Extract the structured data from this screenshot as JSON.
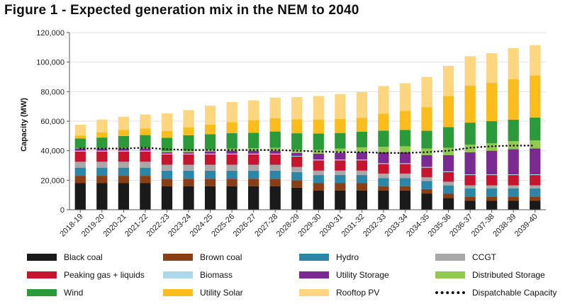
{
  "title": "Figure 1 - Expected generation mix in the NEM to 2040",
  "chart_data": {
    "type": "bar",
    "stacked": true,
    "title": "Figure 1 - Expected generation mix in the NEM to 2040",
    "xlabel": "",
    "ylabel": "Capacity (MW)",
    "ylim": [
      0,
      120000
    ],
    "yticks": [
      0,
      20000,
      40000,
      60000,
      80000,
      100000,
      120000
    ],
    "ytick_labels": [
      "0",
      "20,000",
      "40,000",
      "60,000",
      "80,000",
      "100,000",
      "120,000"
    ],
    "grid": "horizontal",
    "legend_position": "bottom",
    "categories": [
      "2018-19",
      "2019-20",
      "2020-21",
      "2021-22",
      "2022-23",
      "2023-24",
      "2024-25",
      "2025-26",
      "2026-27",
      "2027-28",
      "2028-29",
      "2029-30",
      "2030-31",
      "2031-32",
      "2032-33",
      "2033-34",
      "2034-35",
      "2035-36",
      "2036-37",
      "2037-38",
      "2038-39",
      "2039-40"
    ],
    "series": [
      {
        "name": "Black coal",
        "color": "#1a1a1a",
        "values": [
          18000,
          18000,
          18000,
          18000,
          16000,
          16000,
          16000,
          16000,
          16000,
          16000,
          15000,
          13000,
          13000,
          13000,
          13000,
          13000,
          11000,
          8000,
          6000,
          6000,
          6000,
          6000
        ]
      },
      {
        "name": "Brown coal",
        "color": "#8a3e14",
        "values": [
          5000,
          5000,
          5000,
          5000,
          5000,
          5000,
          5000,
          5000,
          5000,
          5000,
          5000,
          5000,
          5000,
          5000,
          3000,
          3000,
          3000,
          3000,
          3000,
          3000,
          3000,
          3000
        ]
      },
      {
        "name": "Hydro",
        "color": "#2c86a8",
        "values": [
          5500,
          5500,
          5500,
          5500,
          5500,
          5500,
          5500,
          5500,
          5500,
          5500,
          5500,
          5500,
          5500,
          5500,
          5500,
          5500,
          5500,
          5500,
          5500,
          5500,
          5500,
          5500
        ]
      },
      {
        "name": "CCGT",
        "color": "#a8a8a8",
        "values": [
          4000,
          4000,
          4000,
          4000,
          4000,
          4000,
          4000,
          4000,
          4000,
          4000,
          3500,
          3000,
          3000,
          3000,
          3000,
          3000,
          2500,
          2500,
          2000,
          2000,
          2000,
          2000
        ]
      },
      {
        "name": "Peaking gas + liquids",
        "color": "#c8142e",
        "values": [
          7000,
          7000,
          7000,
          7000,
          7000,
          7000,
          7000,
          7000,
          7000,
          7000,
          7000,
          7000,
          7000,
          7000,
          6500,
          6500,
          6500,
          6500,
          7000,
          7000,
          7000,
          7000
        ]
      },
      {
        "name": "Biomass",
        "color": "#add8ea",
        "values": [
          500,
          500,
          500,
          500,
          500,
          500,
          500,
          500,
          500,
          500,
          500,
          500,
          500,
          500,
          500,
          500,
          500,
          500,
          500,
          500,
          500,
          500
        ]
      },
      {
        "name": "Utility Storage",
        "color": "#7b2a92",
        "values": [
          1500,
          1500,
          1500,
          1500,
          1000,
          1000,
          1500,
          2000,
          2000,
          2000,
          2000,
          4000,
          4500,
          5000,
          7500,
          7500,
          8000,
          11000,
          15000,
          16000,
          17000,
          17500
        ]
      },
      {
        "name": "Distributed Storage",
        "color": "#92c94f",
        "values": [
          300,
          400,
          500,
          600,
          800,
          1000,
          1200,
          1400,
          1700,
          2000,
          2300,
          2600,
          3000,
          3300,
          3600,
          4000,
          4500,
          5000,
          5000,
          5000,
          5500,
          5500
        ]
      },
      {
        "name": "Wind",
        "color": "#2b9b3a",
        "values": [
          6500,
          7000,
          8000,
          8500,
          9000,
          10500,
          10500,
          10500,
          10500,
          11000,
          11000,
          11000,
          10500,
          10500,
          11000,
          11000,
          12000,
          14000,
          15000,
          15000,
          14500,
          15500
        ]
      },
      {
        "name": "Utility Solar",
        "color": "#fbbd1c",
        "values": [
          2000,
          3500,
          4000,
          4500,
          4500,
          5500,
          6500,
          7500,
          8500,
          9000,
          9500,
          9500,
          9500,
          9500,
          11500,
          13000,
          16000,
          21000,
          25000,
          26000,
          27500,
          28500
        ]
      },
      {
        "name": "Rooftop PV",
        "color": "#fed67f",
        "values": [
          7300,
          8700,
          9000,
          9400,
          12000,
          11500,
          12800,
          13600,
          13400,
          14000,
          15000,
          16000,
          16900,
          17400,
          18700,
          18700,
          20500,
          20500,
          20000,
          20000,
          21000,
          20500
        ]
      }
    ],
    "dispatchable_capacity": {
      "name": "Dispatchable Capacity",
      "values": [
        41500,
        41500,
        41500,
        42000,
        41000,
        40500,
        40500,
        40500,
        40500,
        40500,
        40000,
        39500,
        39000,
        39000,
        38500,
        38500,
        39000,
        40000,
        42000,
        43000,
        43500,
        43500
      ]
    }
  }
}
